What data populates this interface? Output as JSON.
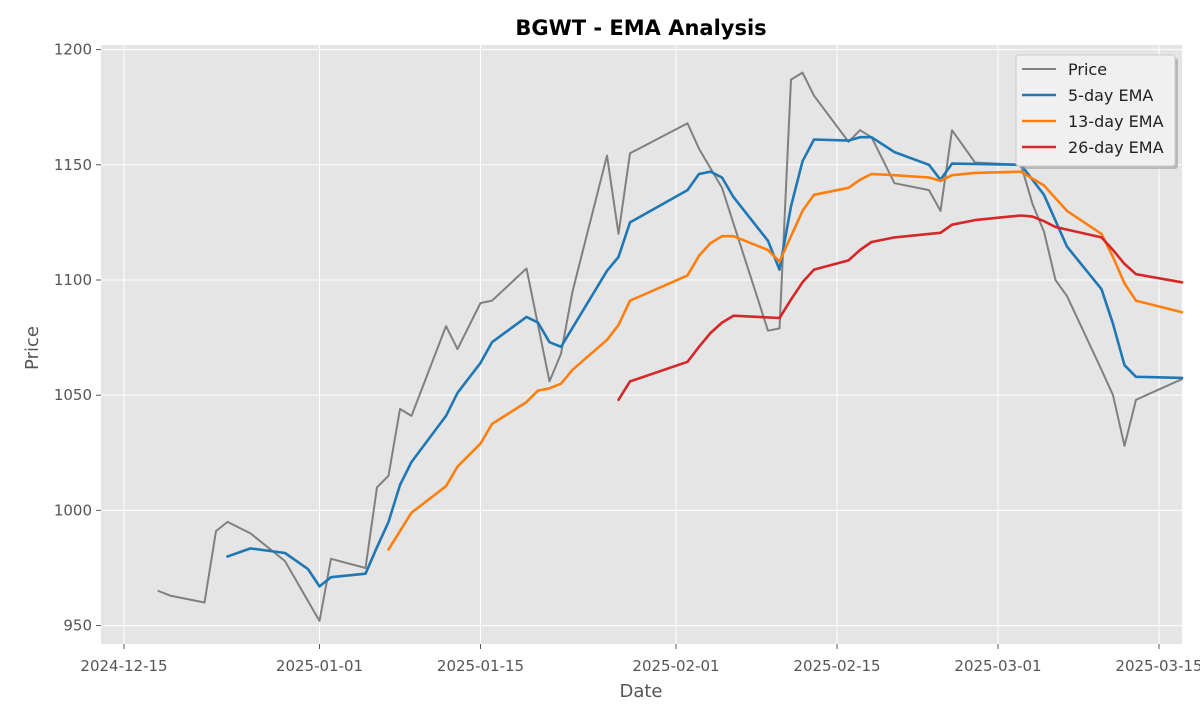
{
  "chart_data": {
    "type": "line",
    "title": "BGWT - EMA Analysis",
    "xlabel": "Date",
    "ylabel": "Price",
    "x_axis_type": "date",
    "xlim": [
      "2024-12-13",
      "2025-03-17"
    ],
    "ylim": [
      942,
      1202
    ],
    "x_ticks": [
      "2024-12-15",
      "2025-01-01",
      "2025-01-15",
      "2025-02-01",
      "2025-02-15",
      "2025-03-01",
      "2025-03-15"
    ],
    "y_ticks": [
      950,
      1000,
      1050,
      1100,
      1150,
      1200
    ],
    "grid": true,
    "legend_position": "top-right",
    "series": [
      {
        "name": "Price",
        "color": "#808080",
        "points": [
          [
            "2024-12-18",
            965
          ],
          [
            "2024-12-19",
            963
          ],
          [
            "2024-12-22",
            960
          ],
          [
            "2024-12-23",
            991
          ],
          [
            "2024-12-24",
            995
          ],
          [
            "2024-12-26",
            990
          ],
          [
            "2024-12-29",
            978
          ],
          [
            "2025-01-01",
            952
          ],
          [
            "2025-01-02",
            979
          ],
          [
            "2025-01-05",
            975
          ],
          [
            "2025-01-06",
            1010
          ],
          [
            "2025-01-07",
            1015
          ],
          [
            "2025-01-08",
            1044
          ],
          [
            "2025-01-09",
            1041
          ],
          [
            "2025-01-12",
            1080
          ],
          [
            "2025-01-13",
            1070
          ],
          [
            "2025-01-15",
            1090
          ],
          [
            "2025-01-16",
            1091
          ],
          [
            "2025-01-19",
            1105
          ],
          [
            "2025-01-21",
            1056
          ],
          [
            "2025-01-22",
            1068
          ],
          [
            "2025-01-23",
            1095
          ],
          [
            "2025-01-26",
            1154
          ],
          [
            "2025-01-27",
            1120
          ],
          [
            "2025-01-28",
            1155
          ],
          [
            "2025-02-02",
            1168
          ],
          [
            "2025-02-03",
            1157
          ],
          [
            "2025-02-05",
            1140
          ],
          [
            "2025-02-09",
            1078
          ],
          [
            "2025-02-10",
            1079
          ],
          [
            "2025-02-11",
            1187
          ],
          [
            "2025-02-12",
            1190
          ],
          [
            "2025-02-13",
            1180
          ],
          [
            "2025-02-16",
            1160
          ],
          [
            "2025-02-17",
            1165
          ],
          [
            "2025-02-18",
            1162
          ],
          [
            "2025-02-20",
            1142
          ],
          [
            "2025-02-23",
            1139
          ],
          [
            "2025-02-24",
            1130
          ],
          [
            "2025-02-25",
            1165
          ],
          [
            "2025-02-27",
            1151
          ],
          [
            "2025-03-03",
            1150
          ],
          [
            "2025-03-04",
            1133
          ],
          [
            "2025-03-05",
            1121
          ],
          [
            "2025-03-06",
            1100
          ],
          [
            "2025-03-07",
            1093
          ],
          [
            "2025-03-10",
            1061
          ],
          [
            "2025-03-11",
            1050
          ],
          [
            "2025-03-12",
            1028
          ],
          [
            "2025-03-13",
            1048
          ],
          [
            "2025-03-17",
            1057
          ]
        ]
      },
      {
        "name": "5-day EMA",
        "color": "#1f77b4",
        "points": [
          [
            "2024-12-24",
            980
          ],
          [
            "2024-12-26",
            983.5
          ],
          [
            "2024-12-29",
            981.5
          ],
          [
            "2024-12-31",
            974.5
          ],
          [
            "2025-01-01",
            967
          ],
          [
            "2025-01-02",
            971
          ],
          [
            "2025-01-05",
            972.5
          ],
          [
            "2025-01-06",
            984
          ],
          [
            "2025-01-07",
            995
          ],
          [
            "2025-01-08",
            1011
          ],
          [
            "2025-01-09",
            1021
          ],
          [
            "2025-01-12",
            1041
          ],
          [
            "2025-01-13",
            1051
          ],
          [
            "2025-01-15",
            1064
          ],
          [
            "2025-01-16",
            1073
          ],
          [
            "2025-01-19",
            1084
          ],
          [
            "2025-01-20",
            1081.5
          ],
          [
            "2025-01-21",
            1073
          ],
          [
            "2025-01-22",
            1071
          ],
          [
            "2025-01-26",
            1104
          ],
          [
            "2025-01-27",
            1110
          ],
          [
            "2025-01-28",
            1125
          ],
          [
            "2025-02-02",
            1139
          ],
          [
            "2025-02-03",
            1146
          ],
          [
            "2025-02-04",
            1147
          ],
          [
            "2025-02-05",
            1144.5
          ],
          [
            "2025-02-06",
            1136
          ],
          [
            "2025-02-09",
            1117
          ],
          [
            "2025-02-10",
            1104.5
          ],
          [
            "2025-02-11",
            1132
          ],
          [
            "2025-02-12",
            1151.5
          ],
          [
            "2025-02-13",
            1161
          ],
          [
            "2025-02-16",
            1160.5
          ],
          [
            "2025-02-17",
            1162
          ],
          [
            "2025-02-18",
            1162
          ],
          [
            "2025-02-20",
            1155.5
          ],
          [
            "2025-02-23",
            1150
          ],
          [
            "2025-02-24",
            1143.5
          ],
          [
            "2025-02-25",
            1150.5
          ],
          [
            "2025-03-03",
            1150
          ],
          [
            "2025-03-05",
            1137
          ],
          [
            "2025-03-07",
            1114.5
          ],
          [
            "2025-03-10",
            1096
          ],
          [
            "2025-03-11",
            1081
          ],
          [
            "2025-03-12",
            1063
          ],
          [
            "2025-03-13",
            1058
          ],
          [
            "2025-03-17",
            1057.5
          ]
        ]
      },
      {
        "name": "13-day EMA",
        "color": "#ff7f0e",
        "points": [
          [
            "2025-01-07",
            983
          ],
          [
            "2025-01-08",
            991
          ],
          [
            "2025-01-09",
            999
          ],
          [
            "2025-01-12",
            1010.5
          ],
          [
            "2025-01-13",
            1019
          ],
          [
            "2025-01-15",
            1029
          ],
          [
            "2025-01-16",
            1037.5
          ],
          [
            "2025-01-19",
            1047
          ],
          [
            "2025-01-20",
            1052
          ],
          [
            "2025-01-21",
            1053
          ],
          [
            "2025-01-22",
            1055
          ],
          [
            "2025-01-23",
            1061
          ],
          [
            "2025-01-26",
            1074
          ],
          [
            "2025-01-27",
            1080.5
          ],
          [
            "2025-01-28",
            1091
          ],
          [
            "2025-02-02",
            1102
          ],
          [
            "2025-02-03",
            1110.5
          ],
          [
            "2025-02-04",
            1116
          ],
          [
            "2025-02-05",
            1119
          ],
          [
            "2025-02-06",
            1119
          ],
          [
            "2025-02-09",
            1113
          ],
          [
            "2025-02-10",
            1108
          ],
          [
            "2025-02-11",
            1119
          ],
          [
            "2025-02-12",
            1130
          ],
          [
            "2025-02-13",
            1137
          ],
          [
            "2025-02-16",
            1140
          ],
          [
            "2025-02-17",
            1143.5
          ],
          [
            "2025-02-18",
            1146
          ],
          [
            "2025-02-20",
            1145.5
          ],
          [
            "2025-02-23",
            1144.5
          ],
          [
            "2025-02-24",
            1143
          ],
          [
            "2025-02-25",
            1145.5
          ],
          [
            "2025-02-27",
            1146.5
          ],
          [
            "2025-03-03",
            1147
          ],
          [
            "2025-03-05",
            1141
          ],
          [
            "2025-03-07",
            1130
          ],
          [
            "2025-03-10",
            1120
          ],
          [
            "2025-03-11",
            1110
          ],
          [
            "2025-03-12",
            1098.5
          ],
          [
            "2025-03-13",
            1091
          ],
          [
            "2025-03-17",
            1086
          ]
        ]
      },
      {
        "name": "26-day EMA",
        "color": "#d62728",
        "points": [
          [
            "2025-01-27",
            1048
          ],
          [
            "2025-01-28",
            1056
          ],
          [
            "2025-02-02",
            1064.5
          ],
          [
            "2025-02-03",
            1071
          ],
          [
            "2025-02-04",
            1077
          ],
          [
            "2025-02-05",
            1081.5
          ],
          [
            "2025-02-06",
            1084.5
          ],
          [
            "2025-02-10",
            1083.5
          ],
          [
            "2025-02-11",
            1091.5
          ],
          [
            "2025-02-12",
            1099
          ],
          [
            "2025-02-13",
            1104.5
          ],
          [
            "2025-02-16",
            1108.5
          ],
          [
            "2025-02-17",
            1113
          ],
          [
            "2025-02-18",
            1116.5
          ],
          [
            "2025-02-20",
            1118.5
          ],
          [
            "2025-02-23",
            1120
          ],
          [
            "2025-02-24",
            1120.5
          ],
          [
            "2025-02-25",
            1124
          ],
          [
            "2025-02-27",
            1126
          ],
          [
            "2025-03-02",
            1127.5
          ],
          [
            "2025-03-03",
            1128
          ],
          [
            "2025-03-04",
            1127.5
          ],
          [
            "2025-03-05",
            1125.5
          ],
          [
            "2025-03-06",
            1123
          ],
          [
            "2025-03-10",
            1118.5
          ],
          [
            "2025-03-11",
            1113
          ],
          [
            "2025-03-12",
            1107
          ],
          [
            "2025-03-13",
            1102.5
          ],
          [
            "2025-03-17",
            1099
          ]
        ]
      }
    ]
  }
}
